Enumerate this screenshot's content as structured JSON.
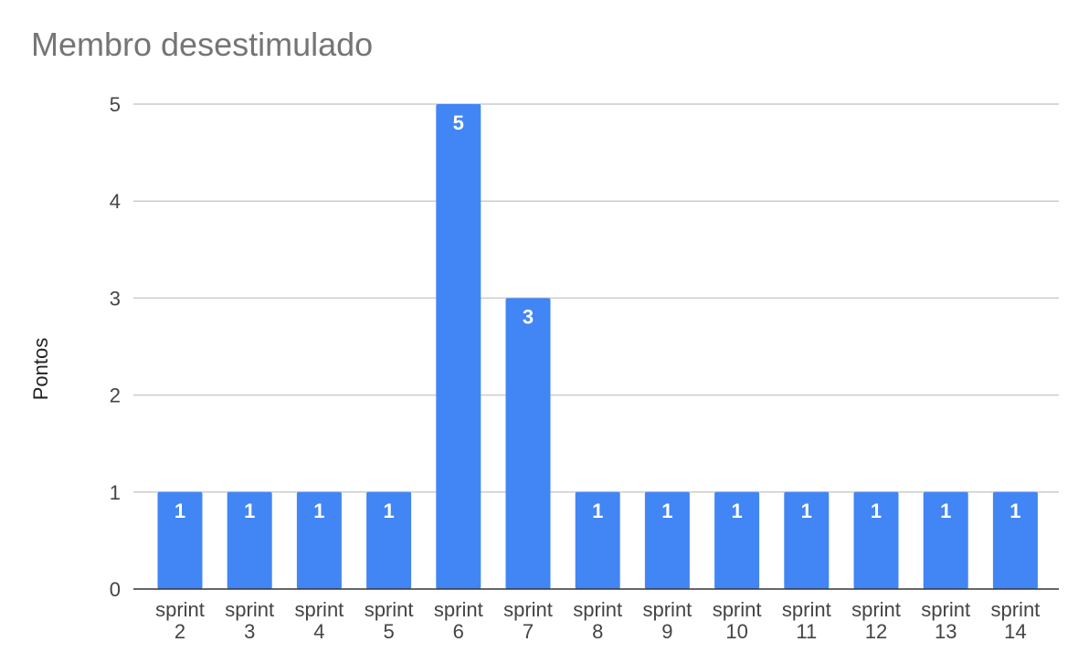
{
  "chart_data": {
    "type": "bar",
    "title": "Membro desestimulado",
    "xlabel": "",
    "ylabel": "Pontos",
    "ylim": [
      0,
      5
    ],
    "yticks": [
      0,
      1,
      2,
      3,
      4,
      5
    ],
    "grid": true,
    "legend": "none",
    "bar_color": "#4285f4",
    "categories": [
      "sprint 2",
      "sprint 3",
      "sprint 4",
      "sprint 5",
      "sprint 6",
      "sprint 7",
      "sprint 8",
      "sprint 9",
      "sprint 10",
      "sprint 11",
      "sprint 12",
      "sprint 13",
      "sprint 14"
    ],
    "values": [
      1,
      1,
      1,
      1,
      5,
      3,
      1,
      1,
      1,
      1,
      1,
      1,
      1
    ],
    "data_labels": [
      "1",
      "1",
      "1",
      "1",
      "5",
      "3",
      "1",
      "1",
      "1",
      "1",
      "1",
      "1",
      "1"
    ]
  }
}
